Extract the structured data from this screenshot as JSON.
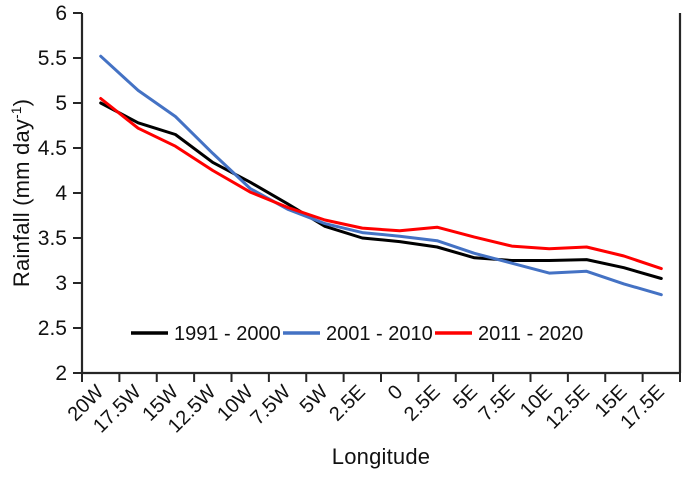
{
  "chart_data": {
    "type": "line",
    "title": "",
    "xlabel": "Longitude",
    "ylabel": "Rainfall (mm day⁻¹)",
    "ylabel_parts": [
      "Rainfall (mm day",
      "-1",
      ")"
    ],
    "x_tick_labels": [
      "20W",
      "17.5W",
      "15W",
      "12.5W",
      "10W",
      "7.5W",
      "5W",
      "2.5E",
      "0",
      "2.5E",
      "5E",
      "7.5E",
      "10E",
      "12.5E",
      "15E",
      "17.5E"
    ],
    "y_ticks": [
      6,
      5.5,
      5,
      4.5,
      4,
      3.5,
      3,
      2.5,
      2
    ],
    "y_tick_labels": [
      "6",
      "5.5",
      "5",
      "4.5",
      "4",
      "3.5",
      "3",
      "2.5",
      "2"
    ],
    "ylim": [
      2,
      6
    ],
    "grid": false,
    "legend_position": "inside-bottom",
    "series": [
      {
        "name": "1991 - 2000",
        "color": "#000000",
        "values": [
          5.0,
          4.78,
          4.65,
          4.34,
          4.12,
          3.88,
          3.63,
          3.5,
          3.46,
          3.4,
          3.28,
          3.25,
          3.25,
          3.26,
          3.17,
          3.05
        ]
      },
      {
        "name": "2001 - 2010",
        "color": "#4472C4",
        "values": [
          5.52,
          5.14,
          4.85,
          4.44,
          4.05,
          3.82,
          3.66,
          3.56,
          3.52,
          3.47,
          3.33,
          3.22,
          3.11,
          3.13,
          2.99,
          2.87
        ]
      },
      {
        "name": "2011 - 2020",
        "color": "#FF0000",
        "values": [
          5.05,
          4.72,
          4.52,
          4.25,
          4.01,
          3.84,
          3.7,
          3.61,
          3.58,
          3.62,
          3.51,
          3.41,
          3.38,
          3.4,
          3.3,
          3.16
        ]
      }
    ],
    "axis_color": "#262626",
    "background": "#ffffff"
  }
}
